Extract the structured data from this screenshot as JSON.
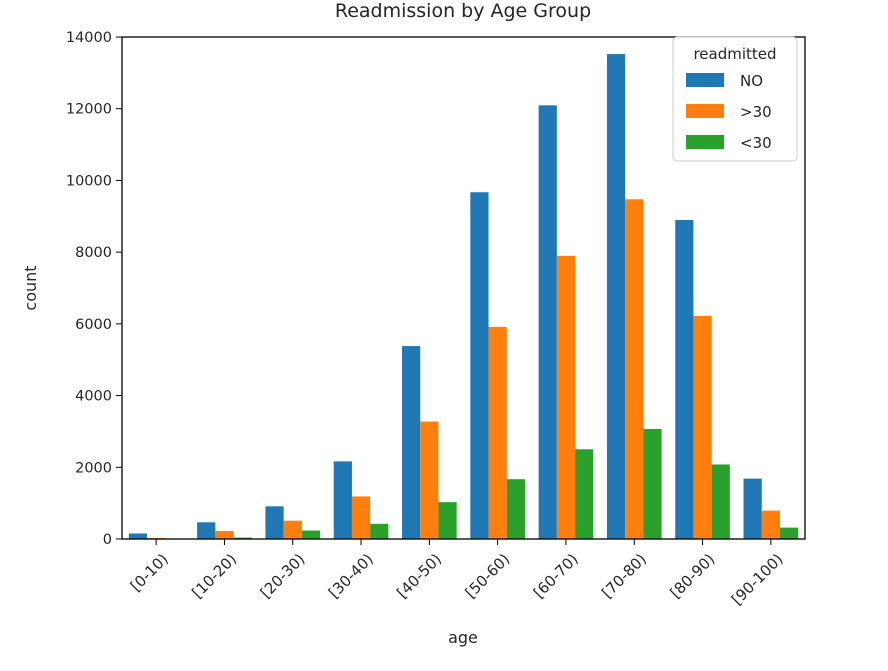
{
  "chart_data": {
    "type": "bar",
    "title": "Readmission by Age Group",
    "xlabel": "age",
    "ylabel": "count",
    "ylim": [
      0,
      14000
    ],
    "yticks": [
      0,
      2000,
      4000,
      6000,
      8000,
      10000,
      12000,
      14000
    ],
    "grid": false,
    "categories": [
      "[0-10)",
      "[10-20)",
      "[20-30)",
      "[30-40)",
      "[40-50)",
      "[50-60)",
      "[60-70)",
      "[70-80)",
      "[80-90)",
      "[90-100)"
    ],
    "series": [
      {
        "name": "NO",
        "color": "#1f77b4",
        "values": [
          154,
          466,
          911,
          2165,
          5380,
          9671,
          12095,
          13524,
          8896,
          1684
        ]
      },
      {
        "name": ">30",
        "color": "#ff7f0e",
        "values": [
          26,
          224,
          510,
          1187,
          3278,
          5917,
          7897,
          9475,
          6223,
          791
        ]
      },
      {
        "name": "<30",
        "color": "#2ca02c",
        "values": [
          3,
          40,
          236,
          424,
          1027,
          1668,
          2502,
          3069,
          2078,
          318
        ]
      }
    ],
    "legend": {
      "title": "readmitted",
      "position": "top-right"
    }
  }
}
